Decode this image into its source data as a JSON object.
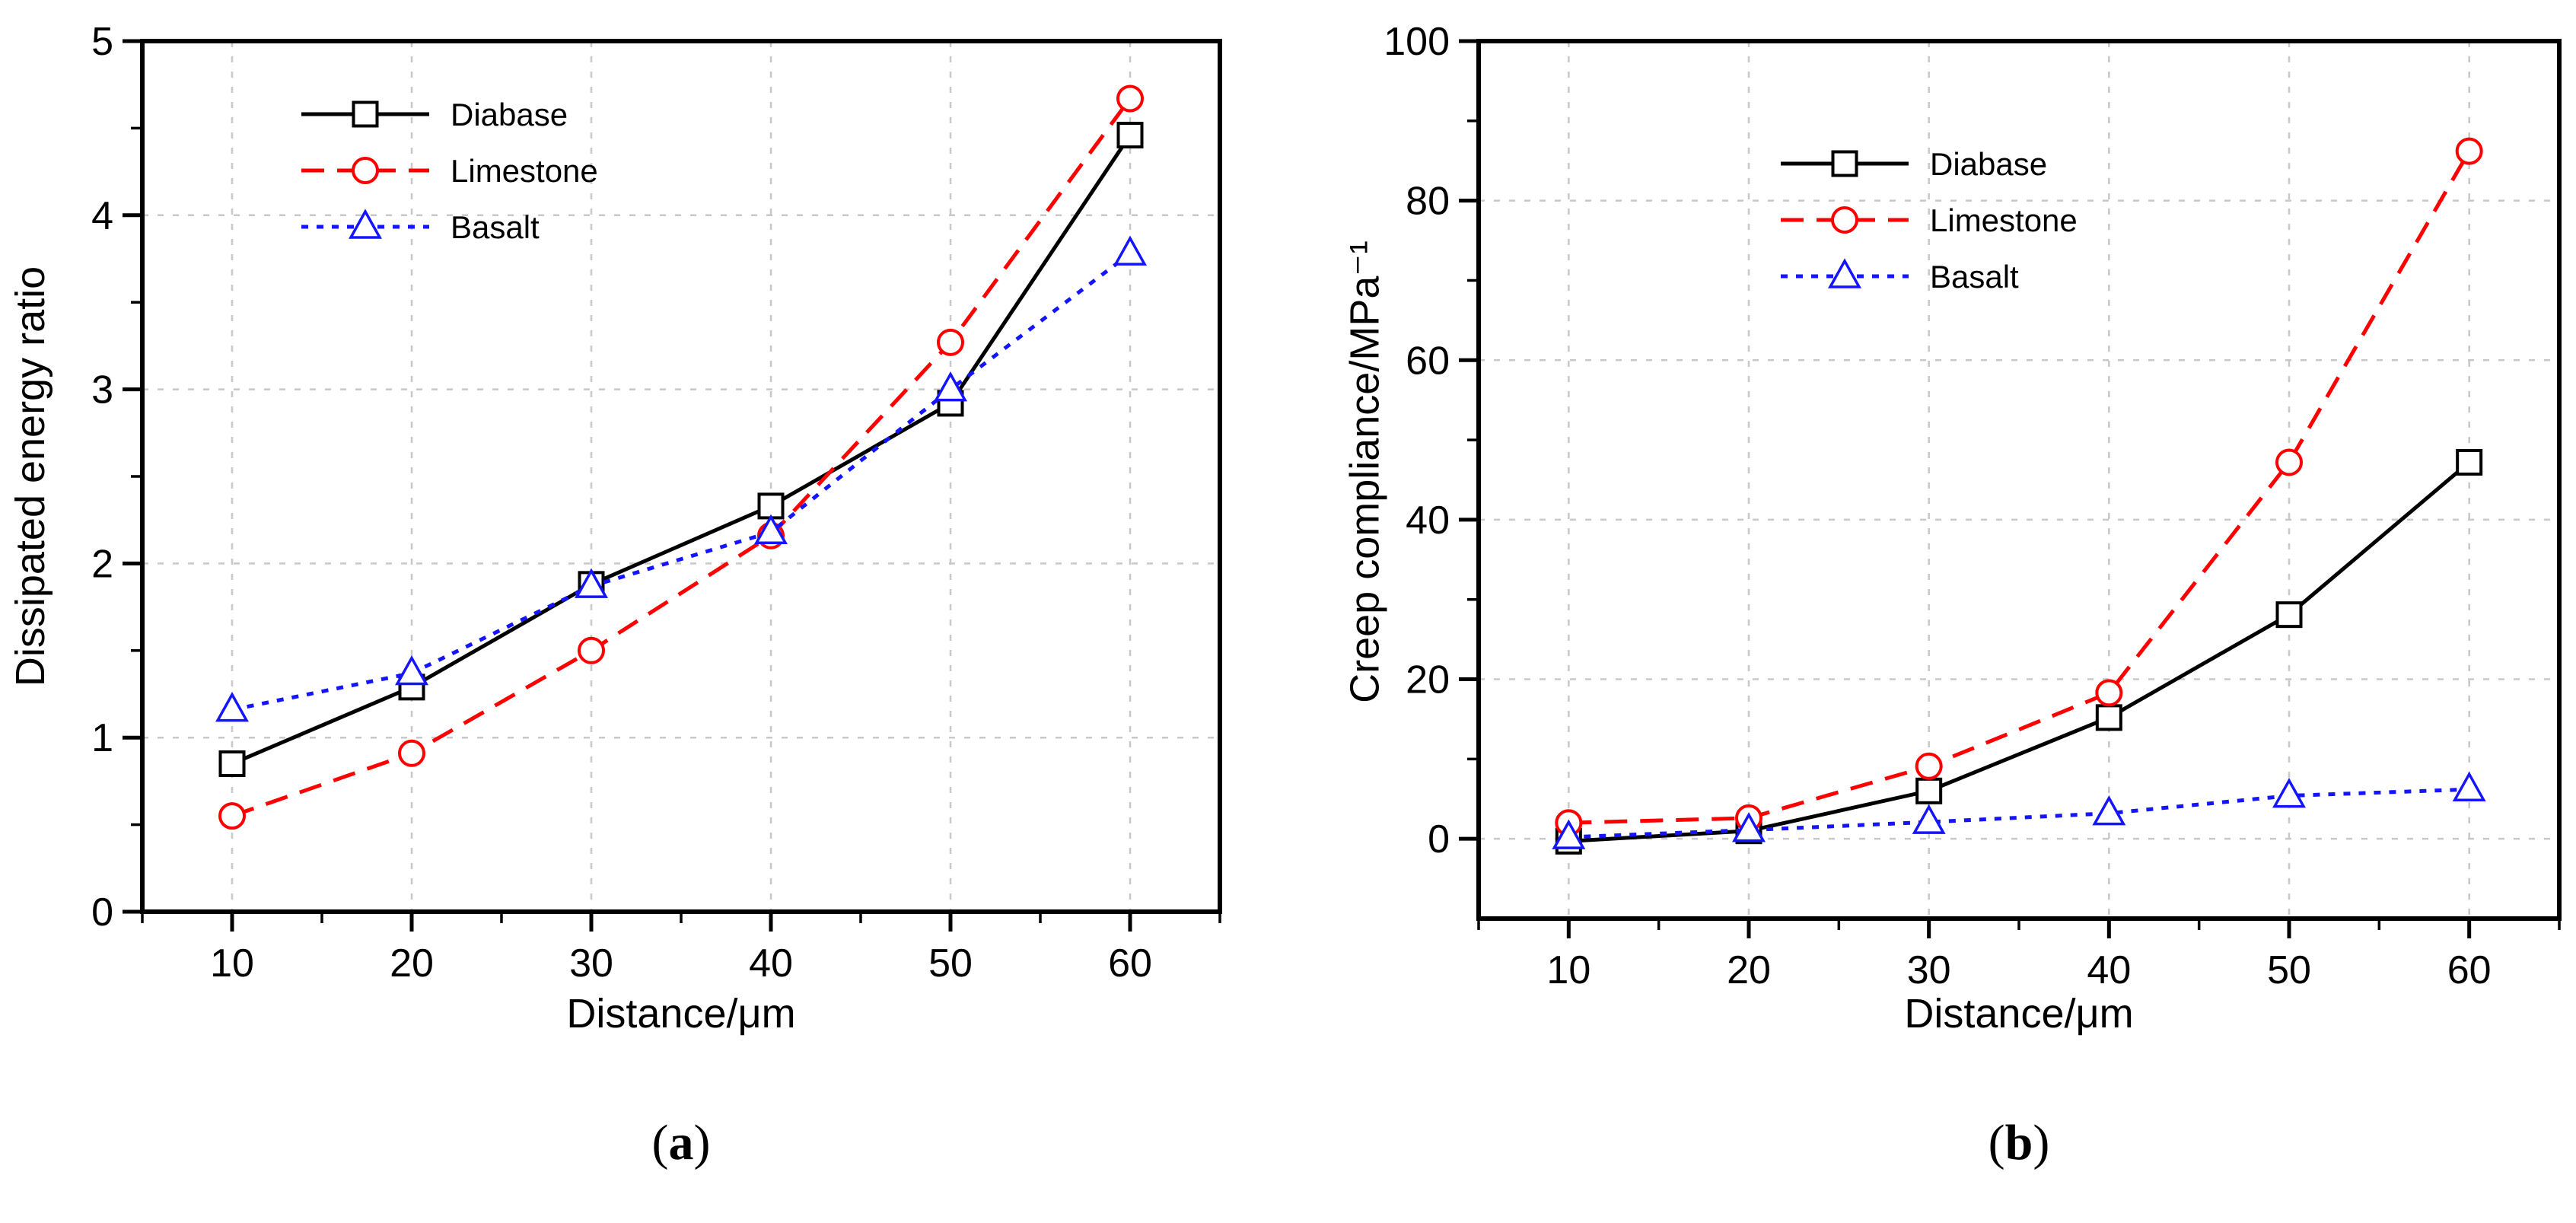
{
  "figure": {
    "background": "#ffffff",
    "colors": {
      "frame": "#000000",
      "grid": "#c8c8c8",
      "text": "#000000"
    }
  },
  "chart_data": [
    {
      "type": "line",
      "panel": "a",
      "caption": {
        "open": "(",
        "letter": "a",
        "close": ")"
      },
      "xlabel": "Distance/μm",
      "ylabel": "Dissipated energy ratio",
      "xlim": [
        5,
        65
      ],
      "ylim": [
        0,
        5
      ],
      "x": [
        10,
        20,
        30,
        40,
        50,
        60
      ],
      "x_tick_labels": [
        "10",
        "20",
        "30",
        "40",
        "50",
        "60"
      ],
      "y_ticks": [
        0,
        1,
        2,
        3,
        4,
        5
      ],
      "y_tick_labels": [
        "0",
        "1",
        "2",
        "3",
        "4",
        "5"
      ],
      "grid": true,
      "legend_position": "upper-left",
      "series": [
        {
          "name": "Diabase",
          "color": "#000000",
          "dash": "none",
          "marker": "square",
          "values": [
            0.85,
            1.29,
            1.88,
            2.33,
            2.92,
            4.46
          ]
        },
        {
          "name": "Limestone",
          "color": "#ff0000",
          "dash": "30 17",
          "marker": "circle",
          "values": [
            0.55,
            0.91,
            1.5,
            2.16,
            3.27,
            4.67
          ]
        },
        {
          "name": "Basalt",
          "color": "#1414ff",
          "dash": "9 11",
          "marker": "triangle",
          "values": [
            1.16,
            1.37,
            1.87,
            2.18,
            3.0,
            3.78
          ]
        }
      ]
    },
    {
      "type": "line",
      "panel": "b",
      "caption": {
        "open": "(",
        "letter": "b",
        "close": ")"
      },
      "xlabel": "Distance/μm",
      "ylabel": "Creep compliance/MPa⁻¹",
      "xlim": [
        5,
        65
      ],
      "ylim": [
        -10,
        100
      ],
      "x": [
        10,
        20,
        30,
        40,
        50,
        60
      ],
      "x_tick_labels": [
        "10",
        "20",
        "30",
        "40",
        "50",
        "60"
      ],
      "y_ticks": [
        0,
        20,
        40,
        60,
        80,
        100
      ],
      "y_tick_labels": [
        "0",
        "20",
        "40",
        "60",
        "80",
        "100"
      ],
      "grid": true,
      "legend_position": "upper-left",
      "series": [
        {
          "name": "Diabase",
          "color": "#000000",
          "dash": "none",
          "marker": "square",
          "values": [
            -0.3,
            1.0,
            6.0,
            15.2,
            28.1,
            47.2
          ]
        },
        {
          "name": "Limestone",
          "color": "#ff0000",
          "dash": "30 17",
          "marker": "circle",
          "values": [
            2.0,
            2.6,
            9.1,
            18.3,
            47.2,
            86.2
          ]
        },
        {
          "name": "Basalt",
          "color": "#1414ff",
          "dash": "9 11",
          "marker": "triangle",
          "values": [
            0.2,
            1.1,
            2.1,
            3.2,
            5.4,
            6.2
          ]
        }
      ]
    }
  ]
}
